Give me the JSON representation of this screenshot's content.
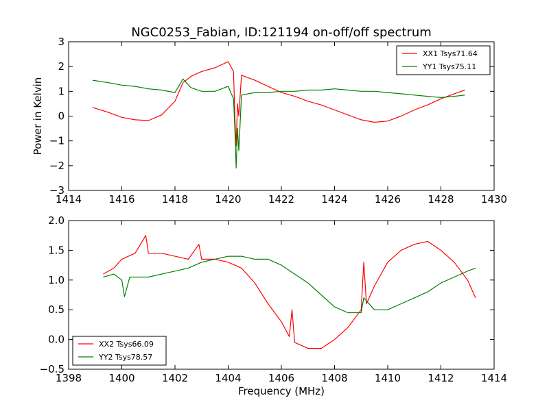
{
  "chart_data": [
    {
      "type": "line",
      "title": "NGC0253_Fabian, ID:121194 on-off/off spectrum",
      "xlabel": "",
      "ylabel": "Power in Kelvin",
      "xlim": [
        1414,
        1430
      ],
      "ylim": [
        -3,
        3
      ],
      "xticks": [
        "1414",
        "1416",
        "1418",
        "1420",
        "1422",
        "1424",
        "1426",
        "1428",
        "1430"
      ],
      "yticks": [
        "−3",
        "−2",
        "−1",
        "0",
        "1",
        "2",
        "3"
      ],
      "legend_position": "top-right",
      "series": [
        {
          "name": "XX1 Tsys71.64",
          "color": "#ff0000",
          "x": [
            1414.9,
            1415.5,
            1416.0,
            1416.5,
            1417.0,
            1417.5,
            1418.0,
            1418.3,
            1418.6,
            1419.0,
            1419.5,
            1420.0,
            1420.2,
            1420.25,
            1420.3,
            1420.35,
            1420.4,
            1420.5,
            1421.0,
            1421.5,
            1422.0,
            1422.5,
            1423.0,
            1423.5,
            1424.0,
            1424.5,
            1425.0,
            1425.5,
            1426.0,
            1426.5,
            1427.0,
            1427.5,
            1428.0,
            1428.5,
            1428.9
          ],
          "y": [
            0.35,
            0.15,
            -0.05,
            -0.15,
            -0.18,
            0.05,
            0.6,
            1.35,
            1.6,
            1.8,
            1.95,
            2.2,
            1.8,
            0.0,
            -1.2,
            0.5,
            0.0,
            1.65,
            1.45,
            1.2,
            0.95,
            0.8,
            0.6,
            0.45,
            0.25,
            0.05,
            -0.15,
            -0.25,
            -0.2,
            0.0,
            0.25,
            0.45,
            0.7,
            0.9,
            1.05
          ]
        },
        {
          "name": "YY1 Tsys75.11",
          "color": "#008000",
          "x": [
            1414.9,
            1415.5,
            1416.0,
            1416.5,
            1417.0,
            1417.5,
            1418.0,
            1418.3,
            1418.6,
            1419.0,
            1419.5,
            1420.0,
            1420.2,
            1420.25,
            1420.3,
            1420.35,
            1420.4,
            1420.5,
            1421.0,
            1421.5,
            1422.0,
            1422.5,
            1423.0,
            1423.5,
            1424.0,
            1424.5,
            1425.0,
            1425.5,
            1426.0,
            1426.5,
            1427.0,
            1427.5,
            1428.0,
            1428.5,
            1428.9
          ],
          "y": [
            1.45,
            1.35,
            1.25,
            1.2,
            1.1,
            1.05,
            0.95,
            1.5,
            1.15,
            1.0,
            1.0,
            1.2,
            0.7,
            -0.5,
            -2.1,
            -0.5,
            -1.4,
            0.85,
            0.95,
            0.95,
            1.0,
            1.0,
            1.05,
            1.05,
            1.1,
            1.05,
            1.0,
            1.0,
            0.95,
            0.9,
            0.85,
            0.8,
            0.75,
            0.8,
            0.85
          ]
        }
      ]
    },
    {
      "type": "line",
      "title": "",
      "xlabel": "Frequency (MHz)",
      "ylabel": "",
      "xlim": [
        1398,
        1414
      ],
      "ylim": [
        -0.5,
        2.0
      ],
      "xticks": [
        "1398",
        "1400",
        "1402",
        "1404",
        "1406",
        "1408",
        "1410",
        "1412",
        "1414"
      ],
      "yticks": [
        "−0.5",
        "0.0",
        "0.5",
        "1.0",
        "1.5",
        "2.0"
      ],
      "legend_position": "bottom-left",
      "series": [
        {
          "name": "XX2 Tsys66.09",
          "color": "#ff0000",
          "x": [
            1399.3,
            1399.7,
            1400.0,
            1400.5,
            1400.9,
            1401.0,
            1401.5,
            1402.0,
            1402.5,
            1402.9,
            1403.0,
            1403.5,
            1404.0,
            1404.5,
            1405.0,
            1405.5,
            1406.0,
            1406.3,
            1406.4,
            1406.5,
            1407.0,
            1407.5,
            1408.0,
            1408.5,
            1409.0,
            1409.1,
            1409.2,
            1409.5,
            1410.0,
            1410.5,
            1411.0,
            1411.5,
            1412.0,
            1412.5,
            1413.0,
            1413.3
          ],
          "y": [
            1.1,
            1.2,
            1.35,
            1.45,
            1.75,
            1.45,
            1.45,
            1.4,
            1.35,
            1.6,
            1.35,
            1.35,
            1.3,
            1.2,
            0.95,
            0.6,
            0.3,
            0.05,
            0.5,
            -0.05,
            -0.15,
            -0.15,
            0.0,
            0.2,
            0.5,
            1.3,
            0.6,
            0.9,
            1.3,
            1.5,
            1.6,
            1.65,
            1.5,
            1.3,
            1.0,
            0.7
          ]
        },
        {
          "name": "YY2 Tsys78.57",
          "color": "#008000",
          "x": [
            1399.3,
            1399.7,
            1400.0,
            1400.1,
            1400.3,
            1401.0,
            1401.5,
            1402.0,
            1402.5,
            1403.0,
            1403.5,
            1404.0,
            1404.5,
            1405.0,
            1405.5,
            1406.0,
            1406.5,
            1407.0,
            1407.5,
            1408.0,
            1408.5,
            1409.0,
            1409.1,
            1409.5,
            1410.0,
            1410.5,
            1411.0,
            1411.5,
            1412.0,
            1412.5,
            1413.0,
            1413.3
          ],
          "y": [
            1.05,
            1.1,
            1.0,
            0.72,
            1.05,
            1.05,
            1.1,
            1.15,
            1.2,
            1.3,
            1.35,
            1.4,
            1.4,
            1.35,
            1.35,
            1.25,
            1.1,
            0.95,
            0.75,
            0.55,
            0.45,
            0.45,
            0.7,
            0.5,
            0.5,
            0.6,
            0.7,
            0.8,
            0.95,
            1.05,
            1.15,
            1.2
          ]
        }
      ]
    }
  ]
}
